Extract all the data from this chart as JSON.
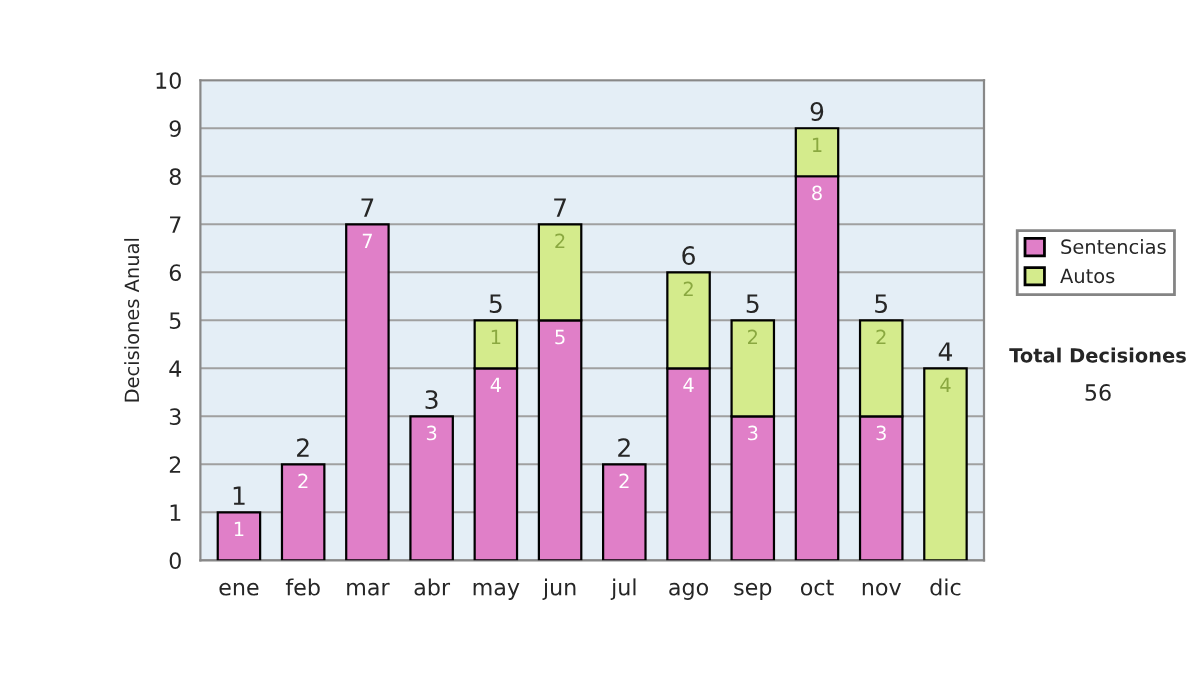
{
  "chart_data": {
    "type": "bar",
    "stacked": true,
    "ylabel": "Decisiones Anual",
    "categories": [
      "ene",
      "feb",
      "mar",
      "abr",
      "may",
      "jun",
      "jul",
      "ago",
      "sep",
      "oct",
      "nov",
      "dic"
    ],
    "series": [
      {
        "name": "Sentencias",
        "color": "#e07fc8",
        "values": [
          1,
          2,
          7,
          3,
          4,
          5,
          2,
          4,
          3,
          8,
          3,
          null
        ],
        "value_labels": [
          "1",
          "2",
          "7",
          "3",
          "4",
          "5",
          "2",
          "4",
          "3",
          "8",
          "3",
          null
        ]
      },
      {
        "name": "Autos",
        "color": "#d4eb8c",
        "values": [
          null,
          null,
          null,
          null,
          1,
          2,
          null,
          2,
          2,
          1,
          2,
          4
        ],
        "value_labels": [
          null,
          null,
          null,
          null,
          "1",
          "2",
          null,
          "2",
          "2",
          "1",
          "2",
          "4"
        ]
      }
    ],
    "totals": [
      "1",
      "2",
      "7",
      "3",
      "5",
      "7",
      "2",
      "6",
      "5",
      "9",
      "5",
      "4"
    ],
    "ylim": [
      0,
      10
    ],
    "yticks": [
      0,
      1,
      2,
      3,
      4,
      5,
      6,
      7,
      8,
      9,
      10
    ],
    "grid": "y",
    "legend": "right",
    "annotations": [
      "Total Decisiones",
      "56"
    ]
  }
}
